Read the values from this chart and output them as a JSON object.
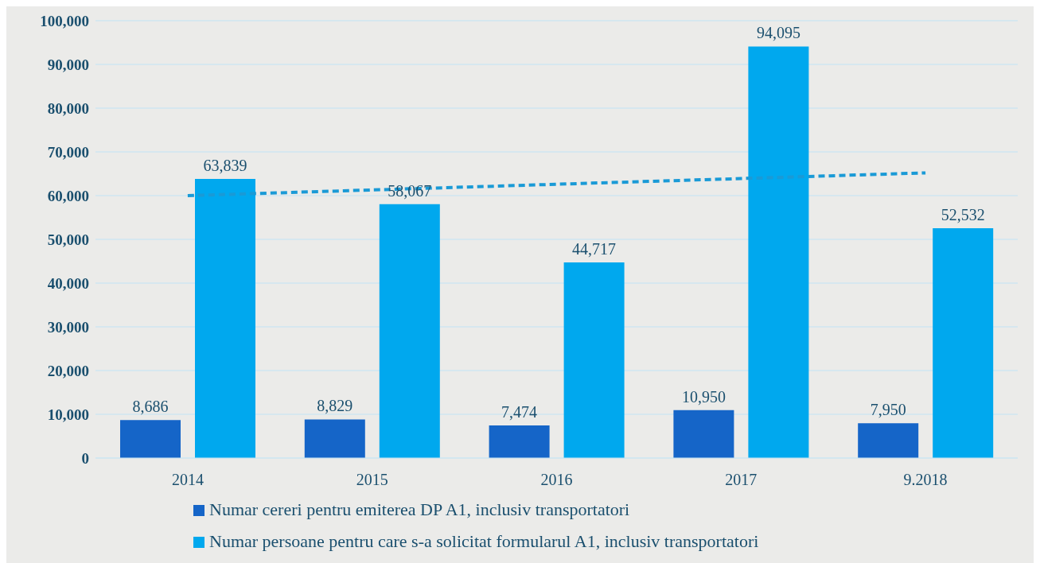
{
  "chart_data": {
    "type": "bar",
    "categories": [
      "2014",
      "2015",
      "2016",
      "2017",
      "9.2018"
    ],
    "series": [
      {
        "name": "Numar cereri pentru emiterea DP A1, inclusiv transportatori",
        "color": "#1565c8",
        "values": [
          8686,
          8829,
          7474,
          10950,
          7950
        ],
        "value_labels": [
          "8,686",
          "8,829",
          "7,474",
          "10,950",
          "7,950"
        ]
      },
      {
        "name": "Numar persoane pentru care s-a solicitat formularul A1, inclusiv transportatori",
        "color": "#00a8ee",
        "values": [
          63839,
          58067,
          44717,
          94095,
          52532
        ],
        "value_labels": [
          "63,839",
          "58,067",
          "44,717",
          "94,095",
          "52,532"
        ]
      },
      {
        "type": "line",
        "color": "#1a9ad6",
        "line_style": "dashed",
        "marker": "none",
        "values": [
          60000,
          61300,
          62600,
          63900,
          65200
        ]
      }
    ],
    "ylim": [
      0,
      100000
    ],
    "yticks": [
      0,
      {
        "value": 10000,
        "label": "10,000"
      },
      {
        "value": 20000,
        "label": "20,000"
      },
      {
        "value": 30000,
        "label": "30,000"
      },
      {
        "value": 40000,
        "label": "40,000"
      },
      {
        "value": 50000,
        "label": "50,000"
      },
      {
        "value": 60000,
        "label": "60,000"
      },
      {
        "value": 70000,
        "label": "70,000"
      },
      {
        "value": 80000,
        "label": "80,000"
      },
      {
        "value": 90000,
        "label": "90,000"
      },
      {
        "value": 100000,
        "label": "100,000"
      }
    ],
    "grid": "y",
    "legend": "bottom"
  }
}
